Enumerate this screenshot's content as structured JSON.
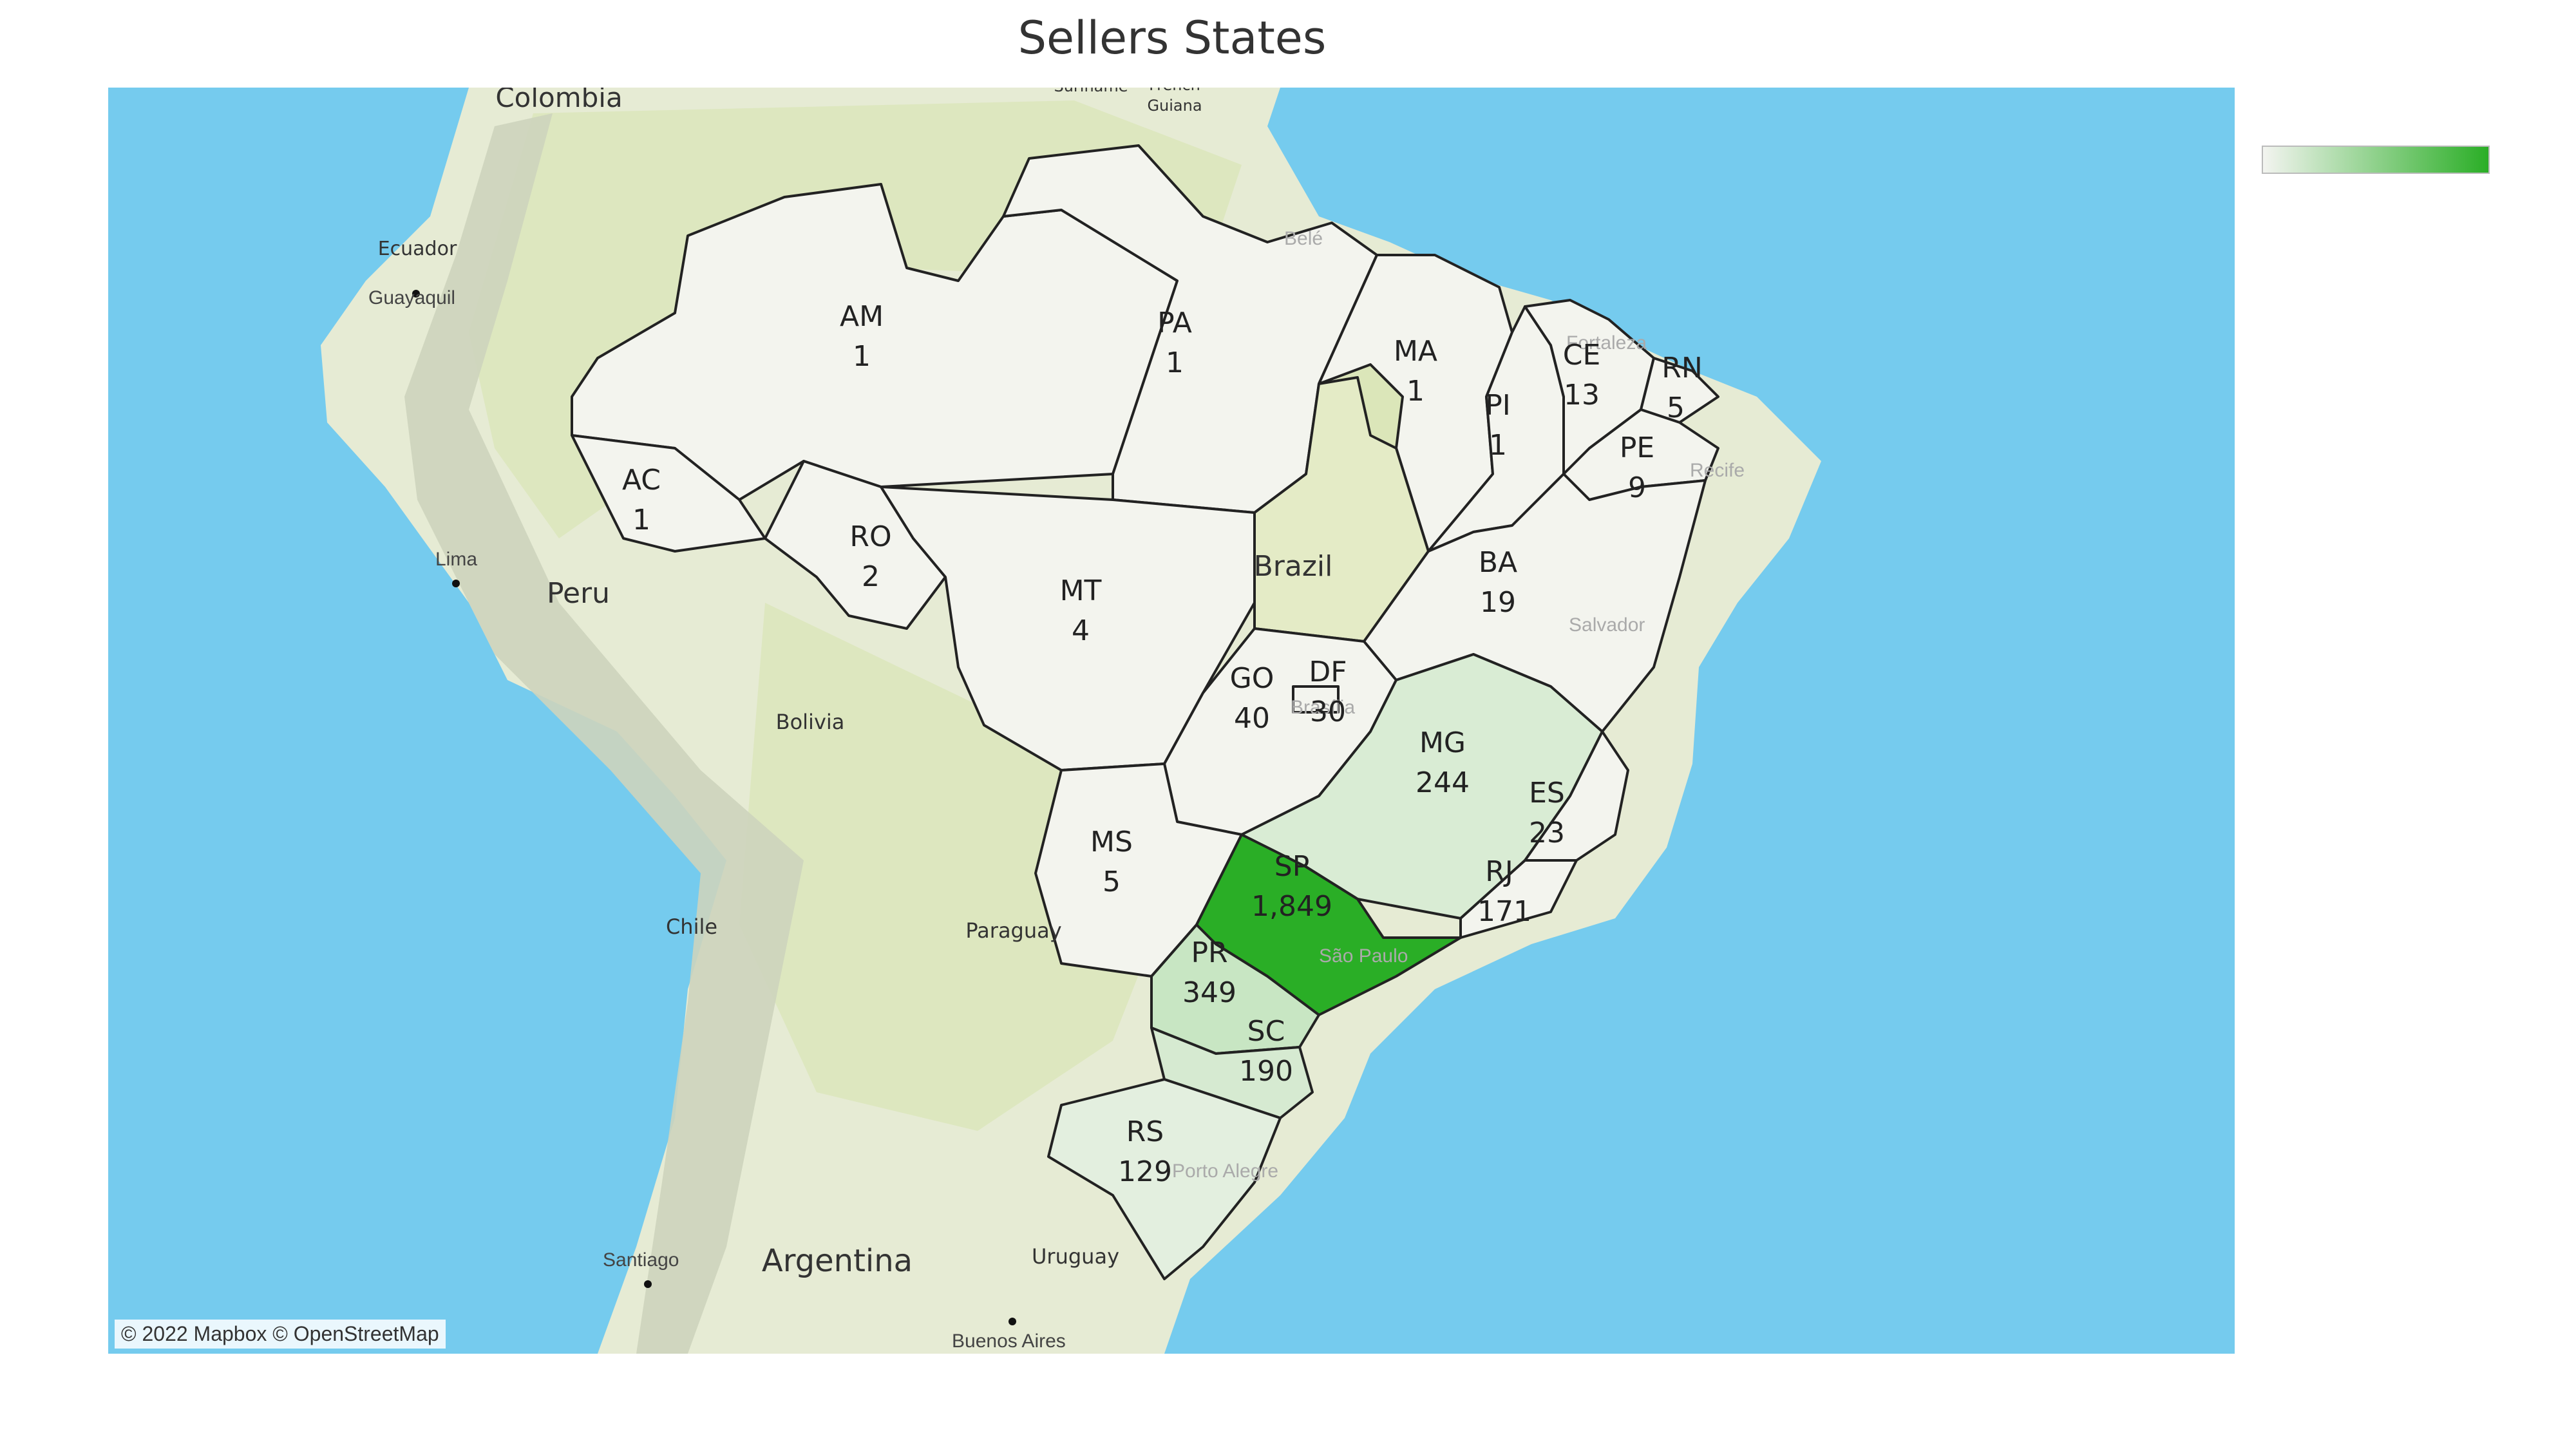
{
  "title": "Sellers States",
  "attribution": "© 2022 Mapbox © OpenStreetMap",
  "colors": {
    "ocean": "#75cbee",
    "land": "#e6ebd4",
    "land_green": "#d9e6b8",
    "scale_low": "#f3f4f0",
    "scale_high": "#2aae26"
  },
  "countries": [
    {
      "name": "Colombia",
      "id": "colombia"
    },
    {
      "name": "Ecuador",
      "id": "ecuador"
    },
    {
      "name": "Peru",
      "id": "peru"
    },
    {
      "name": "Bolivia",
      "id": "bolivia"
    },
    {
      "name": "Chile",
      "id": "chile"
    },
    {
      "name": "Paraguay",
      "id": "paraguay"
    },
    {
      "name": "Argentina",
      "id": "argentina"
    },
    {
      "name": "Uruguay",
      "id": "uruguay"
    },
    {
      "name": "Brazil",
      "id": "brazil"
    },
    {
      "name": "Suriname",
      "id": "suriname"
    },
    {
      "name": "French",
      "id": "french"
    },
    {
      "name": "Guiana",
      "id": "guiana"
    }
  ],
  "cities": [
    {
      "name": "Guayaquil",
      "id": "guayaquil"
    },
    {
      "name": "Lima",
      "id": "lima"
    },
    {
      "name": "Santiago",
      "id": "santiago"
    },
    {
      "name": "Buenos Aires",
      "id": "buenos-aires"
    },
    {
      "name": "Belé",
      "id": "belem"
    },
    {
      "name": "Fortaleza",
      "id": "fortaleza"
    },
    {
      "name": "Recife",
      "id": "recife"
    },
    {
      "name": "Salvador",
      "id": "salvador"
    },
    {
      "name": "Brasília",
      "id": "brasilia"
    },
    {
      "name": "São Paulo",
      "id": "sao-paulo"
    },
    {
      "name": "Porto Alegre",
      "id": "porto-alegre"
    }
  ],
  "chart_data": {
    "type": "choropleth",
    "title": "Sellers States",
    "states": [
      {
        "code": "AM",
        "value": 1,
        "value_label": "1"
      },
      {
        "code": "PA",
        "value": 1,
        "value_label": "1"
      },
      {
        "code": "MA",
        "value": 1,
        "value_label": "1"
      },
      {
        "code": "PI",
        "value": 1,
        "value_label": "1"
      },
      {
        "code": "CE",
        "value": 13,
        "value_label": "13"
      },
      {
        "code": "RN",
        "value": 5,
        "value_label": "5"
      },
      {
        "code": "PE",
        "value": 9,
        "value_label": "9"
      },
      {
        "code": "AC",
        "value": 1,
        "value_label": "1"
      },
      {
        "code": "RO",
        "value": 2,
        "value_label": "2"
      },
      {
        "code": "MT",
        "value": 4,
        "value_label": "4"
      },
      {
        "code": "BA",
        "value": 19,
        "value_label": "19"
      },
      {
        "code": "GO",
        "value": 40,
        "value_label": "40"
      },
      {
        "code": "DF",
        "value": 30,
        "value_label": "30"
      },
      {
        "code": "MG",
        "value": 244,
        "value_label": "244"
      },
      {
        "code": "ES",
        "value": 23,
        "value_label": "23"
      },
      {
        "code": "MS",
        "value": 5,
        "value_label": "5"
      },
      {
        "code": "SP",
        "value": 1849,
        "value_label": "1,849"
      },
      {
        "code": "RJ",
        "value": 171,
        "value_label": "171"
      },
      {
        "code": "PR",
        "value": 349,
        "value_label": "349"
      },
      {
        "code": "SC",
        "value": 190,
        "value_label": "190"
      },
      {
        "code": "RS",
        "value": 129,
        "value_label": "129"
      }
    ],
    "color_scale": {
      "min": 1,
      "max": 1849
    },
    "legend_position": "top-right"
  }
}
